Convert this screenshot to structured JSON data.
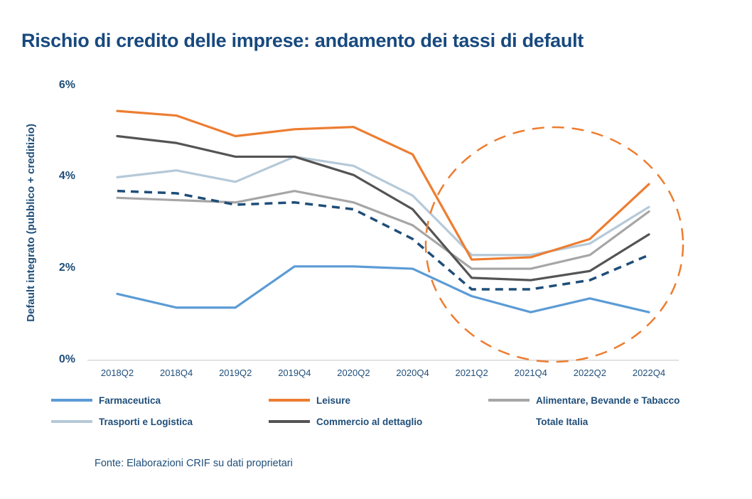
{
  "page": {
    "title": "Rischio di credito delle imprese: andamento dei tassi di default",
    "source_note": "Fonte: Elaborazioni CRIF su dati proprietari"
  },
  "colors": {
    "title_text": "#17497E",
    "axis_text": "#1F4E79",
    "axis_line": "#D9D9D9",
    "highlight_ellipse": "#ED7D31"
  },
  "chart_data": {
    "type": "line",
    "title": "Rischio di credito delle imprese: andamento dei tassi di default",
    "xlabel": "",
    "ylabel": "Default integrato (pubblico + creditizio)",
    "unit": "%",
    "ylim": [
      0,
      6
    ],
    "y_ticks": [
      {
        "value": 0,
        "label": "0%"
      },
      {
        "value": 2,
        "label": "2%"
      },
      {
        "value": 4,
        "label": "4%"
      },
      {
        "value": 6,
        "label": "6%"
      }
    ],
    "grid": false,
    "legend_position": "bottom",
    "categories": [
      "2018Q2",
      "2018Q4",
      "2019Q2",
      "2019Q4",
      "2020Q2",
      "2020Q4",
      "2021Q2",
      "2021Q4",
      "2022Q2",
      "2022Q4"
    ],
    "series": [
      {
        "name": "Farmaceutica",
        "color": "#5B9BD5",
        "dashed": false,
        "values": [
          1.45,
          1.15,
          1.15,
          2.05,
          2.05,
          2.0,
          1.4,
          1.05,
          1.35,
          1.05
        ]
      },
      {
        "name": "Leisure",
        "color": "#ED7D31",
        "dashed": false,
        "values": [
          5.45,
          5.35,
          4.9,
          5.05,
          5.1,
          4.5,
          2.2,
          2.25,
          2.65,
          3.85
        ]
      },
      {
        "name": "Alimentare, Bevande e Tabacco",
        "color": "#A6A6A6",
        "dashed": false,
        "values": [
          3.55,
          3.5,
          3.45,
          3.7,
          3.45,
          2.95,
          2.0,
          2.0,
          2.3,
          3.25
        ]
      },
      {
        "name": "Trasporti e Logistica",
        "color": "#B5C9D8",
        "dashed": false,
        "values": [
          4.0,
          4.15,
          3.9,
          4.45,
          4.25,
          3.6,
          2.3,
          2.3,
          2.55,
          3.35
        ]
      },
      {
        "name": "Commercio al dettaglio",
        "color": "#545454",
        "dashed": false,
        "values": [
          4.9,
          4.75,
          4.45,
          4.45,
          4.05,
          3.3,
          1.8,
          1.75,
          1.95,
          2.75
        ]
      },
      {
        "name": "Totale Italia",
        "color": "#1F4E79",
        "dashed": true,
        "values": [
          3.7,
          3.65,
          3.4,
          3.45,
          3.3,
          2.65,
          1.55,
          1.55,
          1.75,
          2.3
        ]
      }
    ],
    "annotation": {
      "shape": "dashed-ellipse",
      "color": "#ED7D31",
      "covers_categories": [
        "2021Q2",
        "2021Q4",
        "2022Q2",
        "2022Q4"
      ]
    }
  }
}
